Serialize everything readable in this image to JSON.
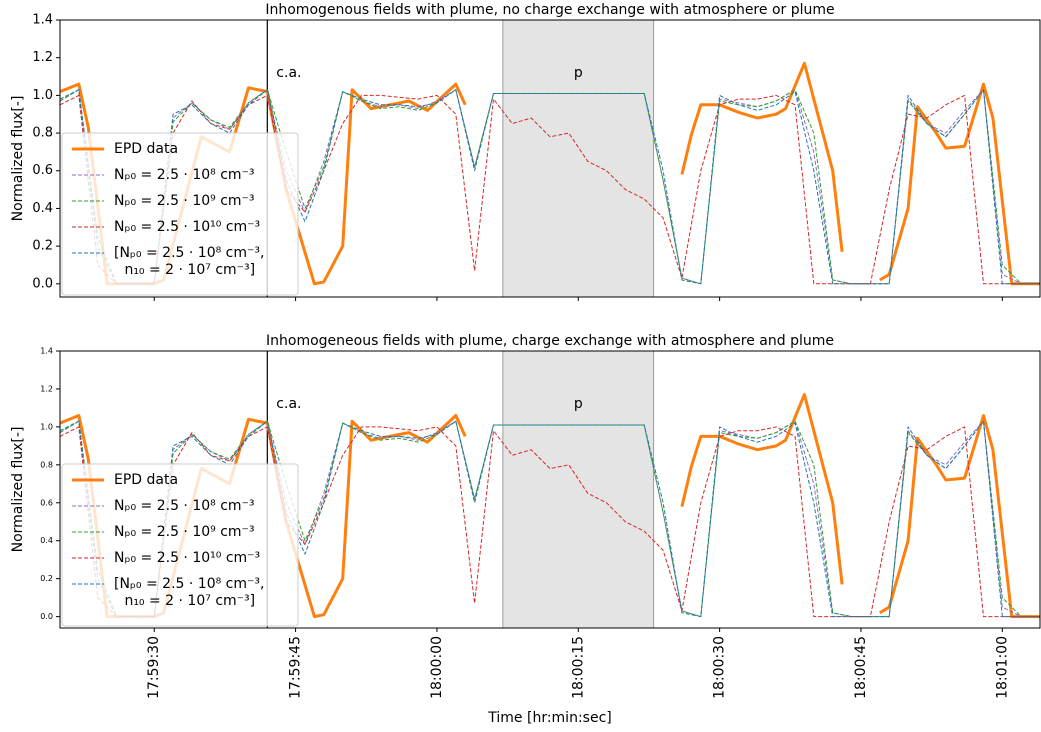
{
  "chart_data": [
    {
      "type": "line",
      "title": "Inhomogenous fields with plume, no charge exchange with atmosphere or plume",
      "ylabel": "Normalized flux[-]",
      "xlim": [
        "17:59:20",
        "18:01:04"
      ],
      "xticks": [
        "17:59:30",
        "17:59:45",
        "18:00:00",
        "18:00:15",
        "18:00:30",
        "18:00:45",
        "18:01:00"
      ],
      "show_xticklabels": false,
      "ylim": [
        -0.07,
        1.4
      ],
      "yticks": [
        {
          "value": 0,
          "label": "0.0"
        },
        {
          "value": 0.2,
          "label": "0.2"
        },
        {
          "value": 0.4,
          "label": "0.4"
        },
        {
          "value": 0.6,
          "label": "0.6"
        },
        {
          "value": 0.8,
          "label": "0.8"
        },
        {
          "value": 1,
          "label": "1.0"
        },
        {
          "value": 1.2,
          "label": "1.2"
        },
        {
          "value": 1.4,
          "label": "1.4"
        }
      ],
      "vline": "17:59:42",
      "vline_label": "c.a.",
      "span": [
        "18:00:07",
        "18:00:23"
      ],
      "span_label": "p",
      "legend": "lower left",
      "x": [
        "17:59:20",
        "17:59:22",
        "17:59:24",
        "17:59:26",
        "17:59:28",
        "17:59:30",
        "17:59:32",
        "17:59:34",
        "17:59:36",
        "17:59:38",
        "17:59:40",
        "17:59:42",
        "17:59:44",
        "17:59:46",
        "17:59:48",
        "17:59:50",
        "17:59:52",
        "17:59:54",
        "17:59:56",
        "17:59:58",
        "18:00:00",
        "18:00:02",
        "18:00:04",
        "18:00:06",
        "18:00:08",
        "18:00:10",
        "18:00:12",
        "18:00:14",
        "18:00:16",
        "18:00:18",
        "18:00:20",
        "18:00:22",
        "18:00:24",
        "18:00:26",
        "18:00:28",
        "18:00:30",
        "18:00:32",
        "18:00:34",
        "18:00:36",
        "18:00:38",
        "18:00:40",
        "18:00:42",
        "18:00:44",
        "18:00:46",
        "18:00:48",
        "18:00:50",
        "18:00:52",
        "18:00:54",
        "18:00:56",
        "18:00:58",
        "18:01:00",
        "18:01:02",
        "18:01:04"
      ],
      "series": [
        {
          "name": "EPD data",
          "color": "#ff7f0e",
          "style": "solid",
          "x": [
            "17:59:20",
            "17:59:22",
            "17:59:23",
            "17:59:25",
            "17:59:30",
            "17:59:31",
            "17:59:35",
            "17:59:38",
            "17:59:40",
            "17:59:42",
            "17:59:44",
            "17:59:47",
            "17:59:48",
            "17:59:50",
            "17:59:51",
            "17:59:53",
            "17:59:55",
            "17:59:57",
            "17:59:59",
            "18:00:02",
            "18:00:03",
            "18:00:04",
            "18:00:26",
            "18:00:27",
            "18:00:28",
            "18:00:30",
            "18:00:32",
            "18:00:34",
            "18:00:36",
            "18:00:37",
            "18:00:39",
            "18:00:40",
            "18:00:42",
            "18:00:43",
            "18:00:44",
            "18:00:47",
            "18:00:48",
            "18:00:50",
            "18:00:51",
            "18:00:53",
            "18:00:54",
            "18:00:56",
            "18:00:58",
            "18:00:59",
            "18:01:01",
            "18:01:04"
          ],
          "values": [
            1.02,
            1.06,
            0.83,
            0.0,
            0.0,
            0.02,
            0.78,
            0.7,
            1.04,
            1.02,
            0.5,
            0.0,
            0.01,
            0.2,
            1.03,
            0.93,
            0.95,
            0.97,
            0.92,
            1.06,
            0.95,
            null,
            0.58,
            0.79,
            0.95,
            0.95,
            0.91,
            0.88,
            0.9,
            0.93,
            1.17,
            0.98,
            0.6,
            0.17,
            null,
            0.02,
            0.05,
            0.4,
            0.94,
            0.8,
            0.72,
            0.73,
            1.06,
            0.88,
            0.0,
            0.0
          ]
        },
        {
          "name": "Nₚ₀ = 2.5 · 10⁸ cm⁻³",
          "color": "#9467bd",
          "style": "dashed",
          "values": [
            0.97,
            1.03,
            0.25,
            0,
            0,
            0,
            0.88,
            0.96,
            0.87,
            0.82,
            0.96,
            1.03,
            0.6,
            0.38,
            0.65,
            1.02,
            0.97,
            0.94,
            0.95,
            0.93,
            0.97,
            1.03,
            0.62,
            1.01,
            1.01,
            1.01,
            1.01,
            1.01,
            1.01,
            1.01,
            1.01,
            1.01,
            0.55,
            0.03,
            0,
            0.98,
            0.96,
            0.94,
            0.97,
            1.03,
            0.7,
            0.02,
            0,
            0,
            0,
            0.98,
            0.85,
            0.8,
            0.92,
            1.03,
            0.05,
            0,
            0
          ]
        },
        {
          "name": "Nₚ₀ = 2.5 · 10⁹ cm⁻³",
          "color": "#2ca02c",
          "style": "dashed",
          "values": [
            0.97,
            1.03,
            0.25,
            0,
            0,
            0,
            0.86,
            0.96,
            0.87,
            0.83,
            0.96,
            1.03,
            0.7,
            0.4,
            0.62,
            1.02,
            0.97,
            0.93,
            0.94,
            0.92,
            0.96,
            1.03,
            0.62,
            1.01,
            1.01,
            1.01,
            1.01,
            1.01,
            1.01,
            1.01,
            1.01,
            1.01,
            0.55,
            0.03,
            0,
            0.97,
            0.95,
            0.94,
            0.97,
            1.03,
            0.8,
            0.02,
            0,
            0,
            0,
            0.97,
            0.85,
            0.78,
            0.9,
            1.03,
            0.1,
            0,
            0
          ]
        },
        {
          "name": "Nₚ₀ = 2.5 · 10¹⁰ cm⁻³",
          "color": "#d62728",
          "style": "dashed",
          "values": [
            0.95,
            1.0,
            0.1,
            0,
            0,
            0,
            0.8,
            0.97,
            0.85,
            0.82,
            0.95,
            1.0,
            0.5,
            0.38,
            0.6,
            0.85,
            1.0,
            1.0,
            0.99,
            0.98,
            1.0,
            0.9,
            0.07,
            0.98,
            0.85,
            0.88,
            0.78,
            0.8,
            0.65,
            0.6,
            0.5,
            0.45,
            0.35,
            0.03,
            0.6,
            0.95,
            0.98,
            0.98,
            1.0,
            0.95,
            0,
            0,
            0,
            0,
            0.5,
            0.9,
            0.88,
            0.95,
            1.0,
            0,
            0,
            0,
            0
          ]
        },
        {
          "name": "[Nₚ₀ = 2.5 · 10⁸ cm⁻³, n₁₀ = 2 · 10⁷ cm⁻³]",
          "color": "#1f77b4",
          "style": "dashed",
          "values": [
            0.98,
            1.03,
            0.2,
            0,
            0,
            0,
            0.9,
            0.95,
            0.85,
            0.8,
            0.95,
            1.03,
            0.55,
            0.33,
            0.6,
            1.02,
            0.98,
            0.95,
            0.95,
            0.94,
            0.96,
            1.03,
            0.6,
            1.01,
            1.01,
            1.01,
            1.01,
            1.01,
            1.01,
            1.01,
            1.01,
            1.01,
            0.6,
            0.02,
            0,
            1.0,
            0.95,
            0.92,
            0.95,
            1.02,
            0.6,
            0,
            0,
            0,
            0,
            1.0,
            0.85,
            0.78,
            0.9,
            1.03,
            0,
            0,
            0
          ]
        }
      ]
    },
    {
      "type": "line",
      "title": "Inhomogeneous fields with plume, charge exchange with atmosphere and plume",
      "ylabel": "Normalized flux[-]",
      "xlabel": "Time [hr:min:sec]",
      "xlim": [
        "17:59:20",
        "18:01:04"
      ],
      "xticks": [
        "17:59:30",
        "17:59:45",
        "18:00:00",
        "18:00:15",
        "18:00:30",
        "18:00:45",
        "18:01:00"
      ],
      "show_xticklabels": true,
      "ylim": [
        -0.06,
        1.4
      ],
      "yticks": [
        {
          "value": 0,
          "label": "0.0"
        },
        {
          "value": 0.2,
          "label": "0.2"
        },
        {
          "value": 0.4,
          "label": "0.4"
        },
        {
          "value": 0.6,
          "label": "0.6"
        },
        {
          "value": 0.8,
          "label": "0.8"
        },
        {
          "value": 1,
          "label": "1.0"
        },
        {
          "value": 1.2,
          "label": "1.2"
        },
        {
          "value": 1.4,
          "label": "1.4"
        }
      ],
      "vline": "17:59:42",
      "vline_label": "c.a.",
      "span": [
        "18:00:07",
        "18:00:23"
      ],
      "span_label": "p",
      "legend": "lower left",
      "x": [
        "17:59:20",
        "17:59:22",
        "17:59:24",
        "17:59:26",
        "17:59:28",
        "17:59:30",
        "17:59:32",
        "17:59:34",
        "17:59:36",
        "17:59:38",
        "17:59:40",
        "17:59:42",
        "17:59:44",
        "17:59:46",
        "17:59:48",
        "17:59:50",
        "17:59:52",
        "17:59:54",
        "17:59:56",
        "17:59:58",
        "18:00:00",
        "18:00:02",
        "18:00:04",
        "18:00:06",
        "18:00:08",
        "18:00:10",
        "18:00:12",
        "18:00:14",
        "18:00:16",
        "18:00:18",
        "18:00:20",
        "18:00:22",
        "18:00:24",
        "18:00:26",
        "18:00:28",
        "18:00:30",
        "18:00:32",
        "18:00:34",
        "18:00:36",
        "18:00:38",
        "18:00:40",
        "18:00:42",
        "18:00:44",
        "18:00:46",
        "18:00:48",
        "18:00:50",
        "18:00:52",
        "18:00:54",
        "18:00:56",
        "18:00:58",
        "18:01:00",
        "18:01:02",
        "18:01:04"
      ],
      "series": [
        {
          "name": "EPD data",
          "color": "#ff7f0e",
          "style": "solid",
          "x": [
            "17:59:20",
            "17:59:22",
            "17:59:23",
            "17:59:25",
            "17:59:30",
            "17:59:31",
            "17:59:35",
            "17:59:38",
            "17:59:40",
            "17:59:42",
            "17:59:44",
            "17:59:47",
            "17:59:48",
            "17:59:50",
            "17:59:51",
            "17:59:53",
            "17:59:55",
            "17:59:57",
            "17:59:59",
            "18:00:02",
            "18:00:03",
            "18:00:04",
            "18:00:26",
            "18:00:27",
            "18:00:28",
            "18:00:30",
            "18:00:32",
            "18:00:34",
            "18:00:36",
            "18:00:37",
            "18:00:39",
            "18:00:40",
            "18:00:42",
            "18:00:43",
            "18:00:44",
            "18:00:47",
            "18:00:48",
            "18:00:50",
            "18:00:51",
            "18:00:53",
            "18:00:54",
            "18:00:56",
            "18:00:58",
            "18:00:59",
            "18:01:01",
            "18:01:04"
          ],
          "values": [
            1.02,
            1.06,
            0.83,
            0.0,
            0.0,
            0.02,
            0.78,
            0.7,
            1.04,
            1.02,
            0.5,
            0.0,
            0.01,
            0.2,
            1.03,
            0.93,
            0.95,
            0.97,
            0.92,
            1.06,
            0.95,
            null,
            0.58,
            0.79,
            0.95,
            0.95,
            0.91,
            0.88,
            0.9,
            0.93,
            1.17,
            0.98,
            0.6,
            0.17,
            null,
            0.02,
            0.05,
            0.4,
            0.94,
            0.8,
            0.72,
            0.73,
            1.06,
            0.88,
            0.0,
            0.0
          ]
        },
        {
          "name": "Nₚ₀ = 2.5 · 10⁸ cm⁻³",
          "color": "#9467bd",
          "style": "dashed",
          "values": [
            0.97,
            1.03,
            0.25,
            0,
            0,
            0,
            0.88,
            0.96,
            0.87,
            0.82,
            0.96,
            1.03,
            0.6,
            0.38,
            0.65,
            1.02,
            0.97,
            0.94,
            0.95,
            0.93,
            0.97,
            1.03,
            0.62,
            1.01,
            1.01,
            1.01,
            1.01,
            1.01,
            1.01,
            1.01,
            1.01,
            1.01,
            0.55,
            0.03,
            0,
            0.98,
            0.96,
            0.94,
            0.97,
            1.03,
            0.7,
            0.02,
            0,
            0,
            0,
            0.98,
            0.85,
            0.8,
            0.92,
            1.03,
            0.05,
            0,
            0
          ]
        },
        {
          "name": "Nₚ₀ = 2.5 · 10⁹ cm⁻³",
          "color": "#2ca02c",
          "style": "dashed",
          "values": [
            0.97,
            1.03,
            0.25,
            0,
            0,
            0,
            0.86,
            0.96,
            0.87,
            0.83,
            0.96,
            1.03,
            0.7,
            0.4,
            0.62,
            1.02,
            0.97,
            0.93,
            0.94,
            0.92,
            0.96,
            1.03,
            0.62,
            1.01,
            1.01,
            1.01,
            1.01,
            1.01,
            1.01,
            1.01,
            1.01,
            1.01,
            0.55,
            0.03,
            0,
            0.97,
            0.95,
            0.94,
            0.97,
            1.03,
            0.8,
            0.02,
            0,
            0,
            0,
            0.97,
            0.85,
            0.78,
            0.9,
            1.03,
            0.1,
            0,
            0
          ]
        },
        {
          "name": "Nₚ₀ = 2.5 · 10¹⁰ cm⁻³",
          "color": "#d62728",
          "style": "dashed",
          "values": [
            0.95,
            1.0,
            0.1,
            0,
            0,
            0,
            0.8,
            0.97,
            0.85,
            0.82,
            0.95,
            1.0,
            0.5,
            0.38,
            0.6,
            0.85,
            1.0,
            1.0,
            0.99,
            0.98,
            1.0,
            0.9,
            0.07,
            0.98,
            0.85,
            0.88,
            0.78,
            0.8,
            0.65,
            0.6,
            0.5,
            0.45,
            0.35,
            0.03,
            0.6,
            0.95,
            0.98,
            0.98,
            1.0,
            0.95,
            0,
            0,
            0,
            0,
            0.5,
            0.9,
            0.88,
            0.95,
            1.0,
            0,
            0,
            0,
            0
          ]
        },
        {
          "name": "[Nₚ₀ = 2.5 · 10⁸ cm⁻³, n₁₀ = 2 · 10⁷ cm⁻³]",
          "color": "#1f77b4",
          "style": "dashed",
          "values": [
            0.98,
            1.03,
            0.2,
            0,
            0,
            0,
            0.9,
            0.95,
            0.85,
            0.8,
            0.95,
            1.03,
            0.55,
            0.33,
            0.6,
            1.02,
            0.98,
            0.95,
            0.95,
            0.94,
            0.96,
            1.03,
            0.6,
            1.01,
            1.01,
            1.01,
            1.01,
            1.01,
            1.01,
            1.01,
            1.01,
            1.01,
            0.6,
            0.02,
            0,
            1.0,
            0.95,
            0.92,
            0.95,
            1.02,
            0.6,
            0,
            0,
            0,
            0,
            1.0,
            0.85,
            0.78,
            0.9,
            1.03,
            0,
            0,
            0
          ]
        }
      ]
    }
  ]
}
